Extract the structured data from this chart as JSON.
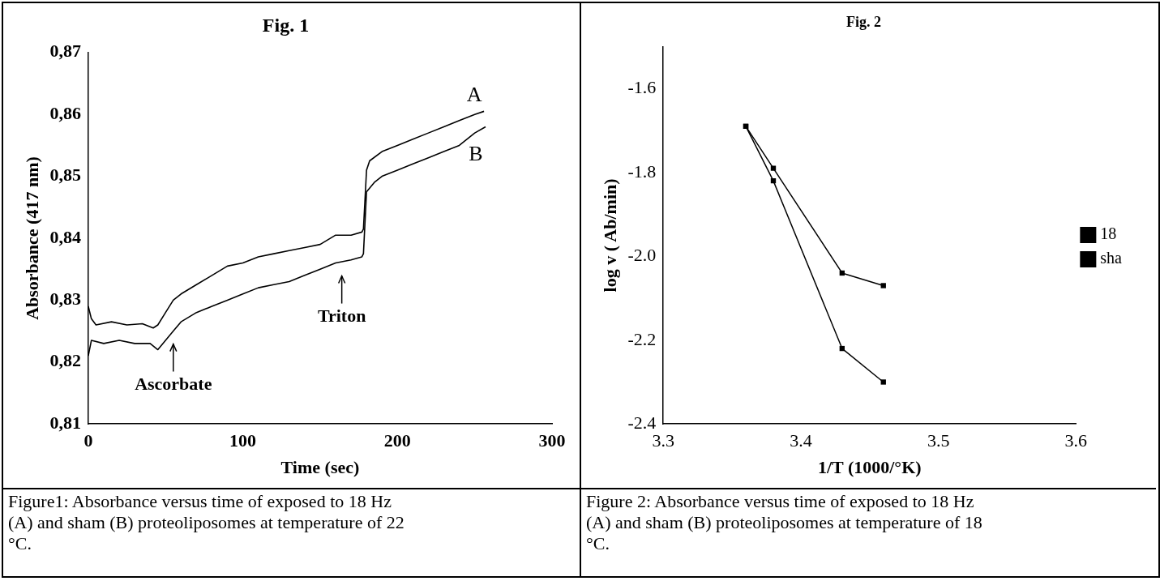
{
  "chart_data": [
    {
      "type": "line",
      "title": "Fig. 1",
      "xlabel": "Time (sec)",
      "ylabel": "Absorbance (417 nm)",
      "legend": false,
      "marker": "none",
      "xlim": [
        0,
        300
      ],
      "xticks": [
        0,
        100,
        200,
        300
      ],
      "ylim": [
        0.81,
        0.87
      ],
      "yticks": [
        {
          "value": 0.81,
          "label": "0,81"
        },
        {
          "value": 0.82,
          "label": "0,82"
        },
        {
          "value": 0.83,
          "label": "0,83"
        },
        {
          "value": 0.84,
          "label": "0,84"
        },
        {
          "value": 0.85,
          "label": "0,85"
        },
        {
          "value": 0.86,
          "label": "0,86"
        },
        {
          "value": 0.87,
          "label": "0,87"
        }
      ],
      "series": [
        {
          "name": "A",
          "color": "#000000",
          "x": [
            0,
            2,
            5,
            15,
            25,
            35,
            42,
            45,
            50,
            55,
            60,
            70,
            80,
            90,
            100,
            110,
            120,
            130,
            140,
            150,
            160,
            170,
            177,
            178,
            180,
            182,
            190,
            200,
            210,
            220,
            230,
            240,
            250,
            256
          ],
          "values": [
            0.829,
            0.827,
            0.826,
            0.8265,
            0.826,
            0.8262,
            0.8255,
            0.826,
            0.828,
            0.83,
            0.831,
            0.8325,
            0.834,
            0.8355,
            0.836,
            0.837,
            0.8375,
            0.838,
            0.8385,
            0.839,
            0.8405,
            0.8405,
            0.841,
            0.8415,
            0.851,
            0.8525,
            0.854,
            0.855,
            0.856,
            0.857,
            0.858,
            0.859,
            0.86,
            0.8605
          ]
        },
        {
          "name": "B",
          "color": "#000000",
          "x": [
            0,
            2,
            10,
            20,
            30,
            40,
            45,
            50,
            55,
            60,
            70,
            80,
            90,
            100,
            110,
            120,
            130,
            140,
            150,
            160,
            170,
            177,
            178,
            180,
            185,
            190,
            200,
            210,
            220,
            230,
            240,
            250,
            257
          ],
          "values": [
            0.821,
            0.8235,
            0.823,
            0.8235,
            0.823,
            0.823,
            0.822,
            0.8235,
            0.825,
            0.8265,
            0.828,
            0.829,
            0.83,
            0.831,
            0.832,
            0.8325,
            0.833,
            0.834,
            0.835,
            0.836,
            0.8365,
            0.837,
            0.8375,
            0.8475,
            0.849,
            0.85,
            0.851,
            0.852,
            0.853,
            0.854,
            0.855,
            0.857,
            0.858
          ]
        }
      ],
      "annotations": [
        {
          "text": "Triton",
          "x": 164,
          "y": 0.836
        },
        {
          "text": "Ascorbate",
          "x": 55,
          "y": 0.825
        },
        "Figure1: Absorbance versus time of exposed to 18 Hz (A) and sham (B) proteoliposomes at temperature of 22 °C."
      ]
    },
    {
      "type": "line",
      "title": "Fig. 2",
      "xlabel": "1/T (1000/°K)",
      "ylabel": "log v ( Ab/min)",
      "legend": "right",
      "marker": "square",
      "x": [
        3.36,
        3.38,
        3.43,
        3.46
      ],
      "xlim": [
        3.3,
        3.6
      ],
      "xticks": [
        3.3,
        3.4,
        3.5,
        3.6
      ],
      "ylim": [
        -2.4,
        -1.5
      ],
      "yticks": [
        {
          "value": -2.4,
          "label": "-2.4"
        },
        {
          "value": -2.2,
          "label": "-2.2"
        },
        {
          "value": -2,
          "label": "-2.0"
        },
        {
          "value": -1.8,
          "label": "-1.8"
        },
        {
          "value": -1.6,
          "label": "-1.6"
        }
      ],
      "series": [
        {
          "name": "18",
          "color": "#000000",
          "values": [
            -1.69,
            -1.79,
            -2.04,
            -2.07
          ]
        },
        {
          "name": "sha",
          "color": "#000000",
          "values": [
            -1.69,
            -1.82,
            -2.22,
            -2.3
          ]
        }
      ],
      "annotations": [
        "Figure 2: Absorbance versus time of exposed to 18 Hz (A) and sham (B) proteoliposomes at temperature of 18 °C."
      ]
    }
  ]
}
